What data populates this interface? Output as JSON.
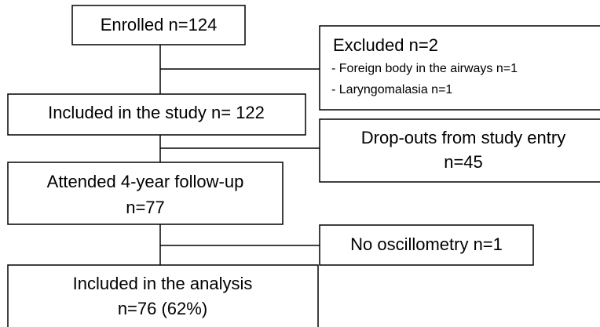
{
  "nodes": [
    {
      "lines": [
        "Enrolled n=124"
      ]
    },
    {
      "lines": [
        "Excluded n=2",
        "- Foreign body in the airways n=1",
        "- Laryngomalasia n=1"
      ]
    },
    {
      "lines": [
        "Included in the study n= 122"
      ]
    },
    {
      "lines": [
        "Drop-outs from study entry",
        "n=45"
      ]
    },
    {
      "lines": [
        "Attended 4-year follow-up",
        "n=77"
      ]
    },
    {
      "lines": [
        "No oscillometry n=1"
      ]
    },
    {
      "lines": [
        "Included in the analysis",
        "n=76 (62%)"
      ]
    }
  ]
}
